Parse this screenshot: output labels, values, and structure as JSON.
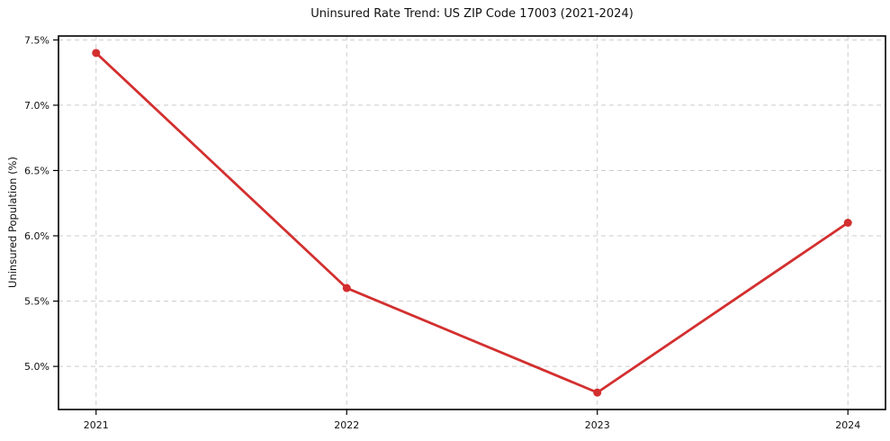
{
  "chart_data": {
    "type": "line",
    "title": "Uninsured Rate Trend: US ZIP Code 17003 (2021-2024)",
    "xlabel": "",
    "ylabel": "Uninsured Population (%)",
    "x": [
      2021,
      2022,
      2023,
      2024
    ],
    "x_tick_labels": [
      "2021",
      "2022",
      "2023",
      "2024"
    ],
    "series": [
      {
        "name": "Uninsured Rate",
        "values": [
          7.4,
          5.6,
          4.8,
          6.1
        ]
      }
    ],
    "y_ticks": [
      5.0,
      5.5,
      6.0,
      6.5,
      7.0,
      7.5
    ],
    "y_tick_labels": [
      "5.0%",
      "5.5%",
      "6.0%",
      "6.5%",
      "7.0%",
      "7.5%"
    ],
    "xlim": [
      2020.85,
      2024.15
    ],
    "ylim": [
      4.67,
      7.53
    ],
    "grid": true,
    "grid_style": "dashed",
    "legend_position": "none",
    "colors": {
      "line": "#d32f2f",
      "marker": "#d32f2f",
      "grid": "#cccccc",
      "spine": "#000000",
      "text": "#111111",
      "background": "#ffffff"
    }
  }
}
